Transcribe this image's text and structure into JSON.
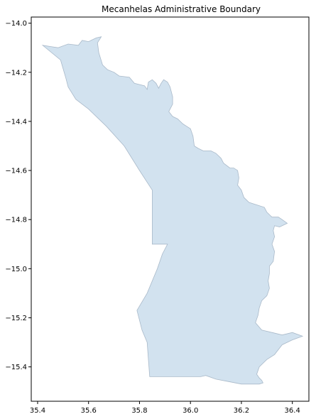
{
  "map": {
    "title": "Mecanhelas Administrative Boundary",
    "fill_color": "#d2e2ef",
    "edge_color": "#a9b9c9",
    "x_ticks": [
      {
        "value": 35.4,
        "label": "35.4"
      },
      {
        "value": 35.6,
        "label": "35.6"
      },
      {
        "value": 35.8,
        "label": "35.8"
      },
      {
        "value": 36.0,
        "label": "36.0"
      },
      {
        "value": 36.2,
        "label": "36.2"
      },
      {
        "value": 36.4,
        "label": "36.4"
      }
    ],
    "y_ticks": [
      {
        "value": -14.0,
        "label": "−14.0"
      },
      {
        "value": -14.2,
        "label": "−14.2"
      },
      {
        "value": -14.4,
        "label": "−14.4"
      },
      {
        "value": -14.6,
        "label": "−14.6"
      },
      {
        "value": -14.8,
        "label": "−14.8"
      },
      {
        "value": -15.0,
        "label": "−15.0"
      },
      {
        "value": -15.2,
        "label": "−15.2"
      },
      {
        "value": -15.4,
        "label": "−15.4"
      }
    ],
    "xlim": [
      35.375,
      36.465
    ],
    "ylim": [
      -15.54,
      -13.975
    ],
    "boundary": [
      [
        35.42,
        -14.09
      ],
      [
        35.45,
        -14.095
      ],
      [
        35.48,
        -14.1
      ],
      [
        35.52,
        -14.085
      ],
      [
        35.56,
        -14.09
      ],
      [
        35.575,
        -14.07
      ],
      [
        35.6,
        -14.075
      ],
      [
        35.63,
        -14.06
      ],
      [
        35.65,
        -14.055
      ],
      [
        35.635,
        -14.08
      ],
      [
        35.64,
        -14.12
      ],
      [
        35.655,
        -14.17
      ],
      [
        35.675,
        -14.19
      ],
      [
        35.7,
        -14.2
      ],
      [
        35.72,
        -14.215
      ],
      [
        35.76,
        -14.22
      ],
      [
        35.78,
        -14.245
      ],
      [
        35.82,
        -14.255
      ],
      [
        35.83,
        -14.27
      ],
      [
        35.835,
        -14.24
      ],
      [
        35.85,
        -14.23
      ],
      [
        35.865,
        -14.245
      ],
      [
        35.875,
        -14.265
      ],
      [
        35.885,
        -14.245
      ],
      [
        35.895,
        -14.23
      ],
      [
        35.91,
        -14.24
      ],
      [
        35.92,
        -14.26
      ],
      [
        35.93,
        -14.3
      ],
      [
        35.93,
        -14.33
      ],
      [
        35.915,
        -14.36
      ],
      [
        35.93,
        -14.38
      ],
      [
        35.95,
        -14.39
      ],
      [
        35.97,
        -14.41
      ],
      [
        35.985,
        -14.42
      ],
      [
        36.0,
        -14.43
      ],
      [
        36.01,
        -14.46
      ],
      [
        36.015,
        -14.5
      ],
      [
        36.03,
        -14.51
      ],
      [
        36.05,
        -14.52
      ],
      [
        36.08,
        -14.52
      ],
      [
        36.1,
        -14.53
      ],
      [
        36.12,
        -14.55
      ],
      [
        36.13,
        -14.57
      ],
      [
        36.155,
        -14.59
      ],
      [
        36.17,
        -14.59
      ],
      [
        36.185,
        -14.6
      ],
      [
        36.19,
        -14.63
      ],
      [
        36.185,
        -14.66
      ],
      [
        36.2,
        -14.68
      ],
      [
        36.21,
        -14.71
      ],
      [
        36.23,
        -14.73
      ],
      [
        36.26,
        -14.74
      ],
      [
        36.29,
        -14.75
      ],
      [
        36.3,
        -14.77
      ],
      [
        36.32,
        -14.79
      ],
      [
        36.345,
        -14.79
      ],
      [
        36.36,
        -14.8
      ],
      [
        36.38,
        -14.815
      ],
      [
        36.37,
        -14.82
      ],
      [
        36.35,
        -14.83
      ],
      [
        36.33,
        -14.825
      ],
      [
        36.325,
        -14.845
      ],
      [
        36.33,
        -14.87
      ],
      [
        36.32,
        -14.9
      ],
      [
        36.33,
        -14.93
      ],
      [
        36.325,
        -14.97
      ],
      [
        36.31,
        -14.99
      ],
      [
        36.31,
        -15.02
      ],
      [
        36.305,
        -15.05
      ],
      [
        36.31,
        -15.08
      ],
      [
        36.3,
        -15.11
      ],
      [
        36.28,
        -15.13
      ],
      [
        36.27,
        -15.16
      ],
      [
        36.265,
        -15.19
      ],
      [
        36.255,
        -15.22
      ],
      [
        36.28,
        -15.25
      ],
      [
        36.32,
        -15.26
      ],
      [
        36.36,
        -15.27
      ],
      [
        36.4,
        -15.26
      ],
      [
        36.44,
        -15.275
      ],
      [
        36.4,
        -15.29
      ],
      [
        36.36,
        -15.31
      ],
      [
        36.33,
        -15.35
      ],
      [
        36.3,
        -15.37
      ],
      [
        36.27,
        -15.4
      ],
      [
        36.26,
        -15.43
      ],
      [
        36.27,
        -15.445
      ],
      [
        36.28,
        -15.455
      ],
      [
        36.285,
        -15.465
      ],
      [
        36.27,
        -15.47
      ],
      [
        36.2,
        -15.47
      ],
      [
        36.15,
        -15.46
      ],
      [
        36.1,
        -15.45
      ],
      [
        36.06,
        -15.435
      ],
      [
        36.04,
        -15.44
      ],
      [
        35.84,
        -15.44
      ],
      [
        35.83,
        -15.3
      ],
      [
        35.81,
        -15.25
      ],
      [
        35.79,
        -15.17
      ],
      [
        35.83,
        -15.1
      ],
      [
        35.87,
        -15.0
      ],
      [
        35.89,
        -14.94
      ],
      [
        35.91,
        -14.9
      ],
      [
        35.85,
        -14.9
      ],
      [
        35.85,
        -14.68
      ],
      [
        35.8,
        -14.6
      ],
      [
        35.74,
        -14.5
      ],
      [
        35.67,
        -14.42
      ],
      [
        35.6,
        -14.35
      ],
      [
        35.55,
        -14.31
      ],
      [
        35.52,
        -14.26
      ],
      [
        35.51,
        -14.22
      ],
      [
        35.49,
        -14.15
      ],
      [
        35.42,
        -14.09
      ]
    ]
  }
}
